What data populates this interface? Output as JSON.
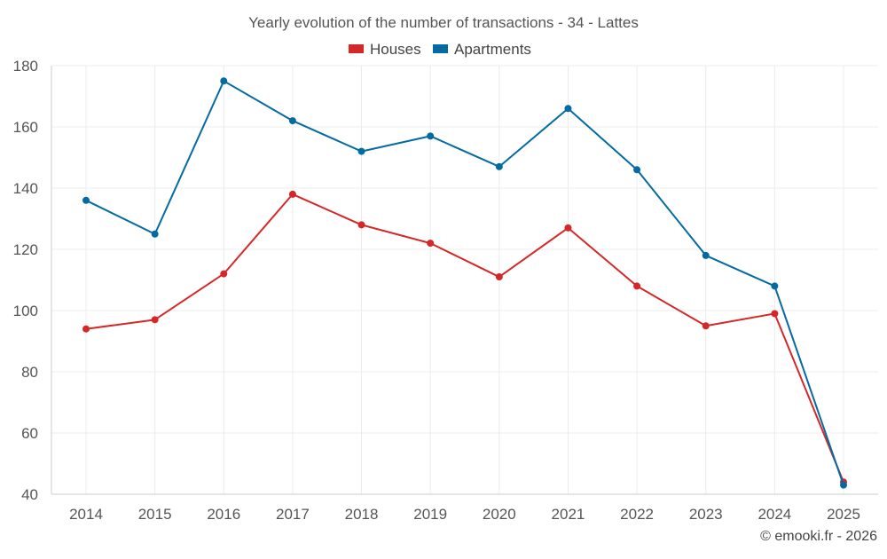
{
  "chart_data": {
    "type": "line",
    "title": "Yearly evolution of the number of transactions - 34 - Lattes",
    "xlabel": "",
    "ylabel": "",
    "categories": [
      "2014",
      "2015",
      "2016",
      "2017",
      "2018",
      "2019",
      "2020",
      "2021",
      "2022",
      "2023",
      "2024",
      "2025"
    ],
    "ylim": [
      40,
      180
    ],
    "yticks": [
      40,
      60,
      80,
      100,
      120,
      140,
      160,
      180
    ],
    "grid": true,
    "legend_position": "top-center",
    "series": [
      {
        "name": "Houses",
        "color": "#d62728",
        "values": [
          94,
          97,
          112,
          138,
          128,
          122,
          111,
          127,
          108,
          95,
          99,
          44
        ]
      },
      {
        "name": "Apartments",
        "color": "#036ba1",
        "values": [
          136,
          125,
          175,
          162,
          152,
          157,
          147,
          166,
          146,
          118,
          108,
          43
        ]
      }
    ]
  },
  "credit": "© emooki.fr - 2026"
}
